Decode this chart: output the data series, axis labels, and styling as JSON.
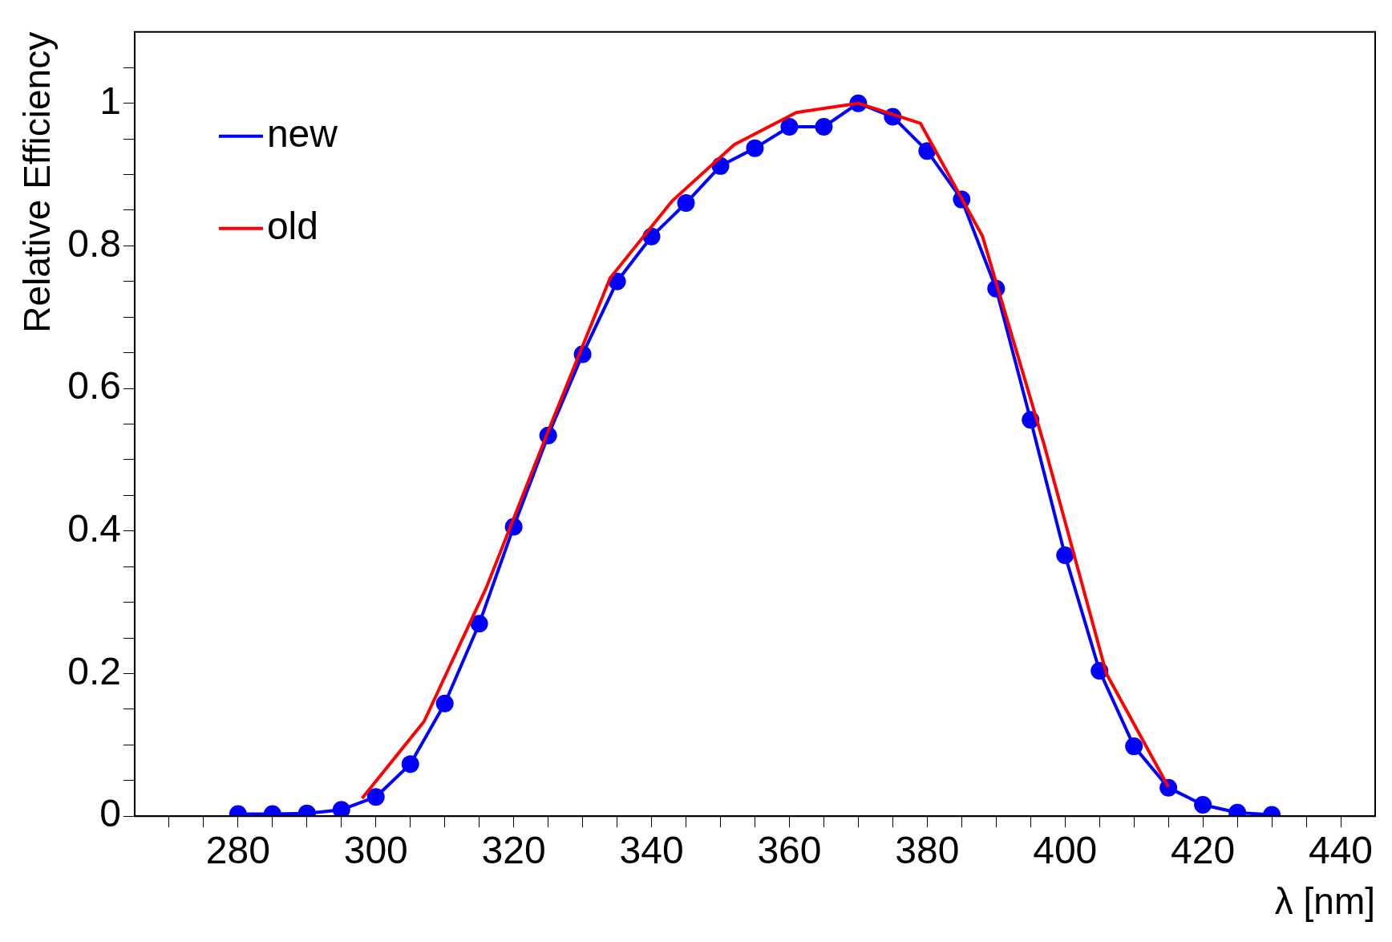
{
  "chart_data": {
    "type": "line",
    "xlabel": "λ [nm]",
    "ylabel": "Relative Efficiency",
    "xlim": [
      265,
      445
    ],
    "ylim": [
      0,
      1.1
    ],
    "xticks": [
      {
        "value": 270,
        "label": null
      },
      {
        "value": 275,
        "label": null
      },
      280,
      {
        "value": 285,
        "label": null
      },
      {
        "value": 290,
        "label": null
      },
      {
        "value": 295,
        "label": null
      },
      300,
      {
        "value": 305,
        "label": null
      },
      {
        "value": 310,
        "label": null
      },
      {
        "value": 315,
        "label": null
      },
      320,
      {
        "value": 325,
        "label": null
      },
      {
        "value": 330,
        "label": null
      },
      {
        "value": 335,
        "label": null
      },
      340,
      {
        "value": 345,
        "label": null
      },
      {
        "value": 350,
        "label": null
      },
      {
        "value": 355,
        "label": null
      },
      360,
      {
        "value": 365,
        "label": null
      },
      {
        "value": 370,
        "label": null
      },
      {
        "value": 375,
        "label": null
      },
      380,
      {
        "value": 385,
        "label": null
      },
      {
        "value": 390,
        "label": null
      },
      {
        "value": 395,
        "label": null
      },
      400,
      {
        "value": 405,
        "label": null
      },
      {
        "value": 410,
        "label": null
      },
      {
        "value": 415,
        "label": null
      },
      420,
      {
        "value": 425,
        "label": null
      },
      {
        "value": 430,
        "label": null
      },
      {
        "value": 435,
        "label": null
      },
      440
    ],
    "yticks": [
      0,
      {
        "value": 0.05,
        "label": null
      },
      {
        "value": 0.1,
        "label": null
      },
      {
        "value": 0.15,
        "label": null
      },
      0.2,
      {
        "value": 0.25,
        "label": null
      },
      {
        "value": 0.3,
        "label": null
      },
      {
        "value": 0.35,
        "label": null
      },
      0.4,
      {
        "value": 0.45,
        "label": null
      },
      {
        "value": 0.5,
        "label": null
      },
      {
        "value": 0.55,
        "label": null
      },
      0.6,
      {
        "value": 0.65,
        "label": null
      },
      {
        "value": 0.7,
        "label": null
      },
      {
        "value": 0.75,
        "label": null
      },
      0.8,
      {
        "value": 0.85,
        "label": null
      },
      {
        "value": 0.9,
        "label": null
      },
      {
        "value": 0.95,
        "label": null
      },
      1,
      {
        "value": 1.05,
        "label": null
      }
    ],
    "grid": false,
    "legend": "top left",
    "series": [
      {
        "name": "new",
        "color": "#0000ff",
        "marker": "circle",
        "x": [
          280,
          285,
          290,
          295,
          300,
          305,
          310,
          315,
          320,
          325,
          330,
          335,
          340,
          345,
          350,
          355,
          360,
          365,
          370,
          375,
          380,
          385,
          390,
          395,
          400,
          405,
          410,
          415,
          420,
          425,
          430
        ],
        "values": [
          0.003,
          0.003,
          0.004,
          0.009,
          0.027,
          0.073,
          0.158,
          0.27,
          0.406,
          0.534,
          0.648,
          0.75,
          0.813,
          0.86,
          0.912,
          0.937,
          0.967,
          0.967,
          1.0,
          0.981,
          0.933,
          0.865,
          0.74,
          0.556,
          0.366,
          0.204,
          0.098,
          0.04,
          0.016,
          0.005,
          0.002
        ]
      },
      {
        "name": "old",
        "color": "#ff0000",
        "marker": "none",
        "x": [
          298,
          307,
          316,
          325,
          334,
          343,
          352,
          361,
          370,
          379,
          388,
          397,
          406,
          415
        ],
        "values": [
          0.025,
          0.133,
          0.32,
          0.54,
          0.755,
          0.863,
          0.942,
          0.987,
          1.0,
          0.972,
          0.814,
          0.52,
          0.2,
          0.041
        ]
      }
    ]
  }
}
